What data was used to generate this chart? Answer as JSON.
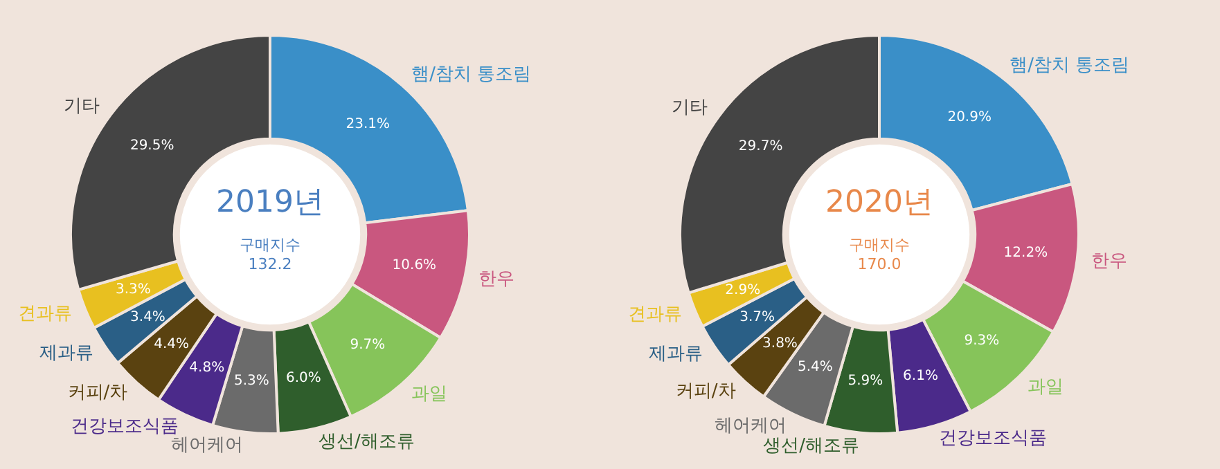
{
  "chart_data": [
    {
      "type": "donut",
      "title": "2019년",
      "annotations": [
        "구매지수",
        "132.2"
      ],
      "legend": false,
      "categories": [
        "햄/참치 통조림",
        "한우",
        "과일",
        "생선/해조류",
        "헤어케어",
        "건강보조식품",
        "커피/차",
        "제과류",
        "견과류",
        "기타"
      ],
      "values": [
        23.1,
        10.6,
        9.7,
        6.0,
        5.3,
        4.8,
        4.4,
        3.4,
        3.3,
        29.5
      ],
      "value_labels": [
        "23.1%",
        "10.6%",
        "9.7%",
        "6.0%",
        "5.3%",
        "4.8%",
        "4.4%",
        "3.4%",
        "3.3%",
        "29.5%"
      ],
      "colors": [
        "#3a8fc8",
        "#c9577f",
        "#86c45a",
        "#2f5e2c",
        "#6b6b6b",
        "#4b2a8a",
        "#5a4210",
        "#2a5f86",
        "#e8c020",
        "#444444"
      ]
    },
    {
      "type": "donut",
      "title": "2020년",
      "annotations": [
        "구매지수",
        "170.0"
      ],
      "legend": false,
      "categories": [
        "햄/참치 통조림",
        "한우",
        "과일",
        "건강보조식품",
        "생선/해조류",
        "헤어케어",
        "커피/차",
        "제과류",
        "견과류",
        "기타"
      ],
      "values": [
        20.9,
        12.2,
        9.3,
        6.1,
        5.9,
        5.4,
        3.8,
        3.7,
        2.9,
        29.7
      ],
      "value_labels": [
        "20.9%",
        "12.2%",
        "9.3%",
        "6.1%",
        "5.9%",
        "5.4%",
        "3.8%",
        "3.7%",
        "2.9%",
        "29.7%"
      ],
      "colors": [
        "#3a8fc8",
        "#c9577f",
        "#86c45a",
        "#4b2a8a",
        "#2f5e2c",
        "#6b6b6b",
        "#5a4210",
        "#2a5f86",
        "#e8c020",
        "#444444"
      ]
    }
  ]
}
